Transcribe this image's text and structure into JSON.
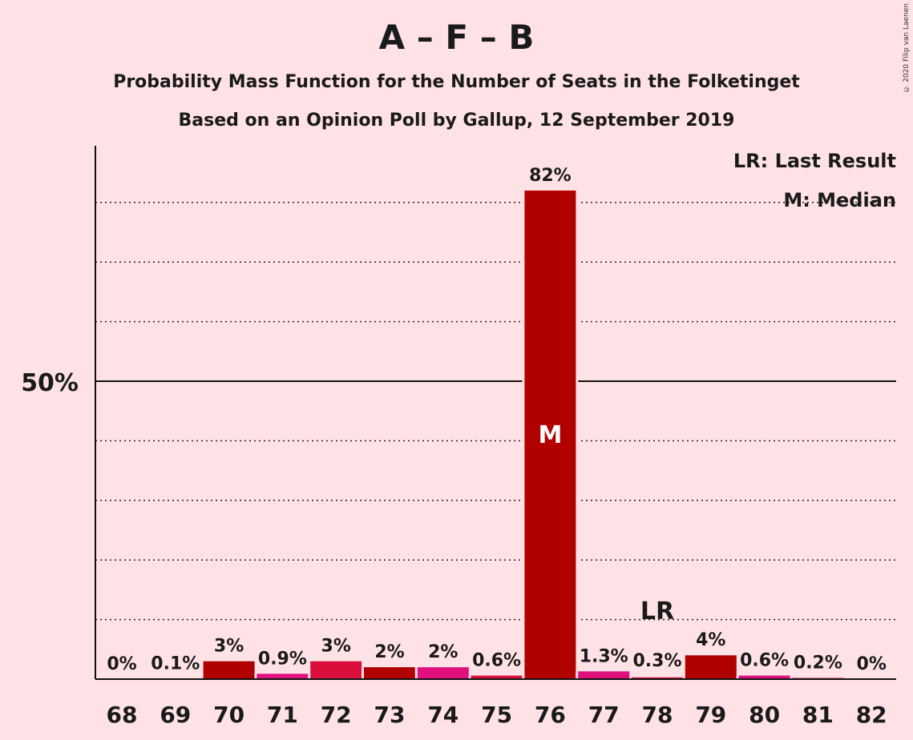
{
  "title": "A – F – B",
  "subtitle": "Probability Mass Function for the Number of Seats in the Folketinget",
  "subtitle2": "Based on an Opinion Poll by Gallup, 12 September 2019",
  "copyright": "© 2020 Filip van Laenen",
  "legend": {
    "lr": "LR: Last Result",
    "m": "M: Median"
  },
  "colors": {
    "background": "#FFE2E6",
    "dark_red": "#B00000",
    "crimson": "#D90F3C",
    "pink": "#E0117F"
  },
  "chart_data": {
    "type": "bar",
    "categories": [
      "68",
      "69",
      "70",
      "71",
      "72",
      "73",
      "74",
      "75",
      "76",
      "77",
      "78",
      "79",
      "80",
      "81",
      "82"
    ],
    "values": [
      0,
      0.1,
      3,
      0.9,
      3,
      2,
      2,
      0.6,
      82,
      1.3,
      0.3,
      4,
      0.6,
      0.2,
      0
    ],
    "labels": [
      "0%",
      "0.1%",
      "3%",
      "0.9%",
      "3%",
      "2%",
      "2%",
      "0.6%",
      "82%",
      "1.3%",
      "0.3%",
      "4%",
      "0.6%",
      "0.2%",
      "0%"
    ],
    "bar_colors": [
      "#B00000",
      "#D90F3C",
      "#B00000",
      "#E0117F",
      "#D90F3C",
      "#B00000",
      "#E0117F",
      "#D90F3C",
      "#B00000",
      "#E0117F",
      "#D90F3C",
      "#B00000",
      "#E0117F",
      "#D90F3C",
      "#B00000"
    ],
    "ylim": [
      0,
      90
    ],
    "yticks": [
      {
        "value": 50,
        "label": "50%"
      }
    ],
    "grid": "dotted every 10%",
    "median": {
      "category": "76",
      "label": "M"
    },
    "last_result": {
      "category": "78",
      "label": "LR"
    }
  }
}
